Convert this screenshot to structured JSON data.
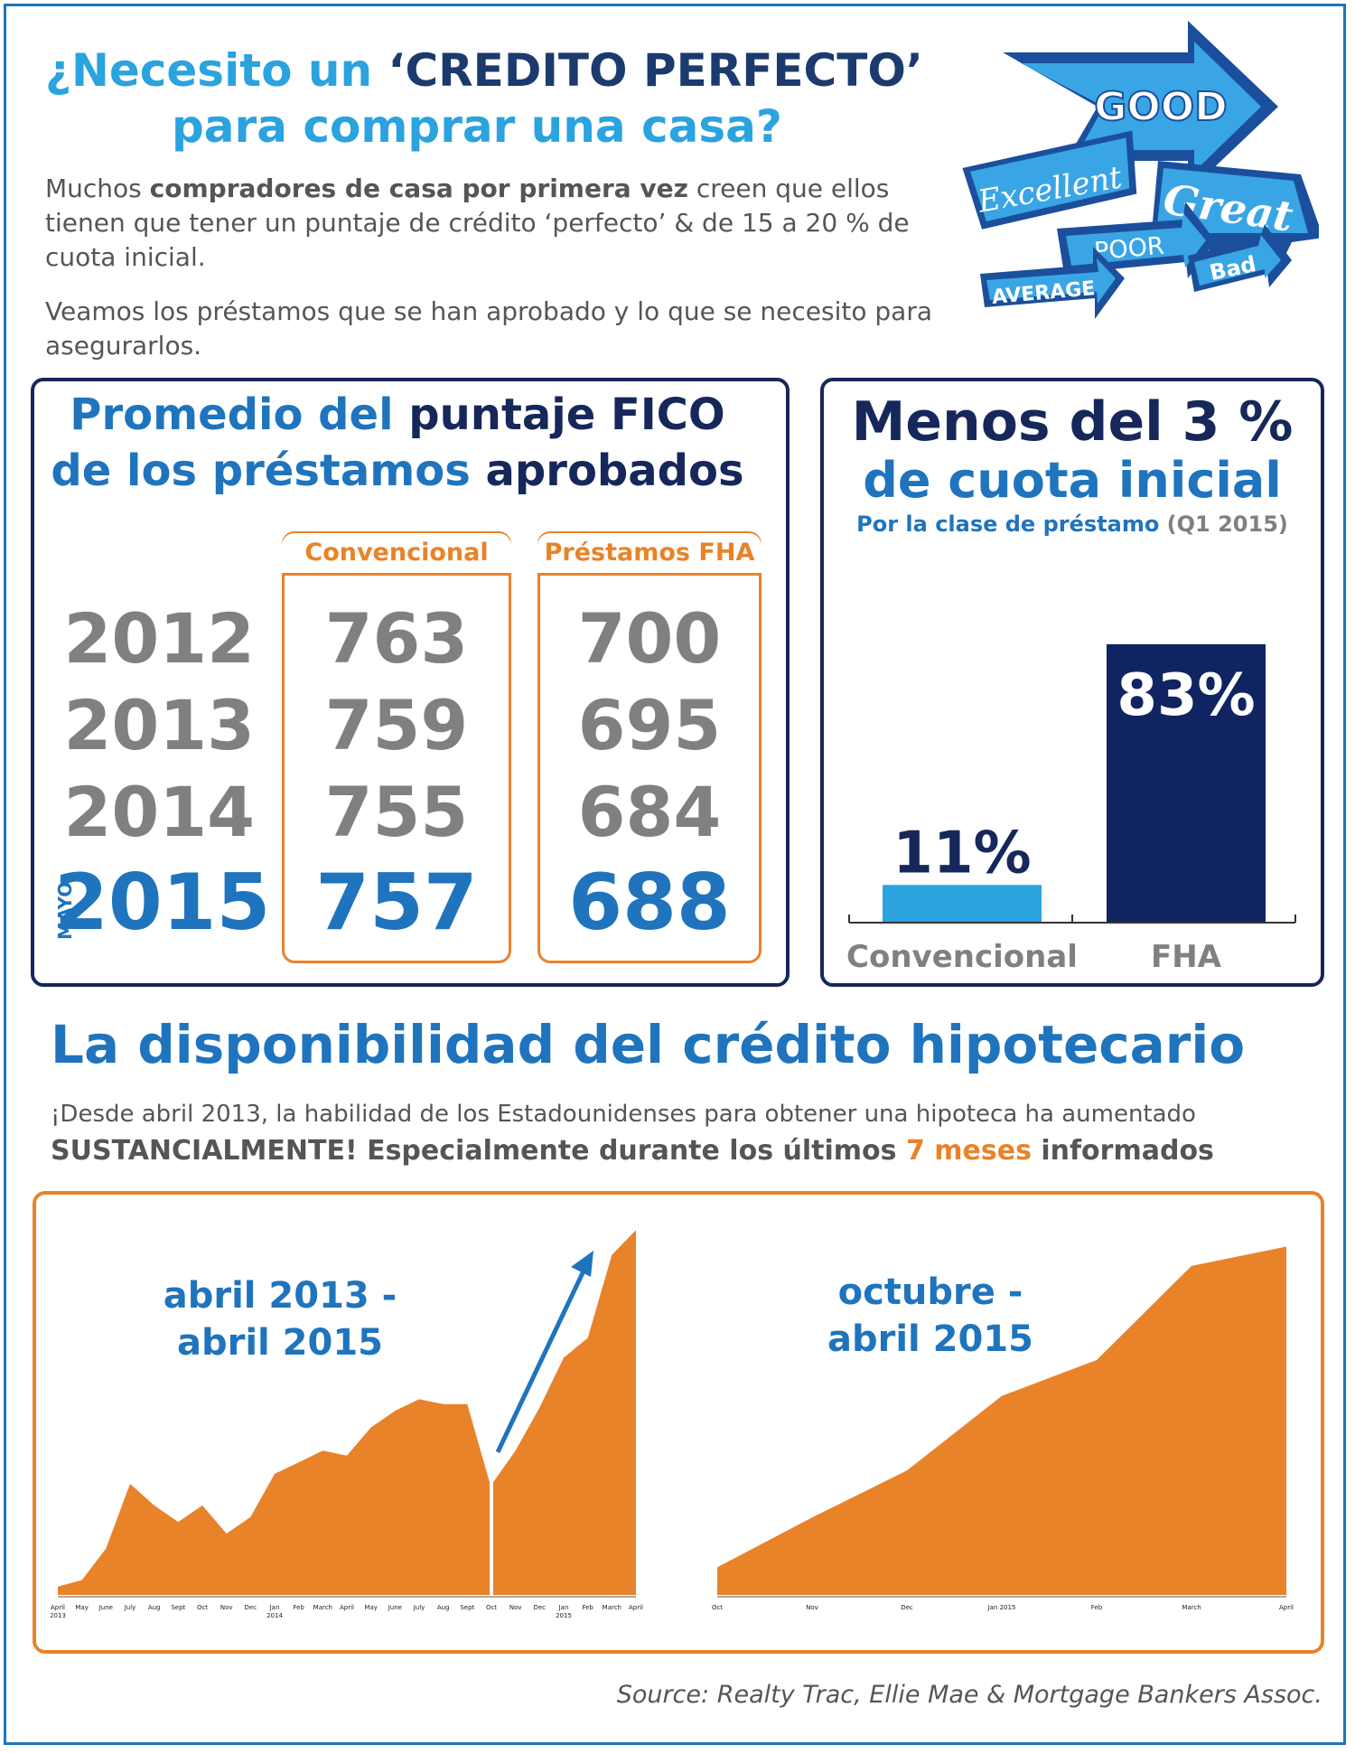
{
  "header": {
    "title_prefix": "¿Necesito un ",
    "title_emph": "‘CREDITO PERFECTO’",
    "title_line2": "para comprar una casa?",
    "intro_p1_a": "Muchos ",
    "intro_p1_b": "compradores de casa por primera vez",
    "intro_p1_c": " creen que ellos tienen que tener un puntaje de crédito ‘perfecto’ & de 15 a 20 % de cuota inicial.",
    "intro_p2": "Veamos los préstamos que se han aprobado y lo que se necesito para asegurarlos."
  },
  "badge": {
    "words": [
      "GOOD",
      "Excellent",
      "Great",
      "POOR",
      "Bad",
      "AVERAGE"
    ],
    "colors": {
      "dark": "#1b4f9c",
      "light": "#3aa5e4"
    }
  },
  "fico": {
    "title_a": "Promedio del ",
    "title_b": "puntaje FICO",
    "title_c": "de los préstamos ",
    "title_d": "aprobados",
    "col_conv": "Convencional",
    "col_fha": "Préstamos FHA",
    "mayo": "MAYO",
    "rows": [
      {
        "year": "2012",
        "conv": "763",
        "fha": "700"
      },
      {
        "year": "2013",
        "conv": "759",
        "fha": "695"
      },
      {
        "year": "2014",
        "conv": "755",
        "fha": "684"
      },
      {
        "year": "2015",
        "conv": "757",
        "fha": "688"
      }
    ]
  },
  "down": {
    "title_a": "Menos del 3 %",
    "title_b": "de cuota inicial",
    "subtitle_a": "Por la clase de préstamo",
    "subtitle_b": " (Q1 2015)"
  },
  "credit": {
    "heading": "La disponibilidad del crédito  hipotecario",
    "sub1": "¡Desde abril 2013, la habilidad de los Estadounidenses para obtener una hipoteca ha aumentado",
    "sub2_a": "SUSTANCIALMENTE! Especialmente durante los últimos ",
    "sub2_b": "7 meses",
    "sub2_c": " informados",
    "label_left_1": "abril 2013 -",
    "label_left_2": "abril 2015",
    "label_right_1": "octubre -",
    "label_right_2": "abril 2015"
  },
  "source": "Source: Realty Trac, Ellie Mae & Mortgage Bankers Assoc.",
  "colors": {
    "blue": "#1f74bd",
    "navy": "#16275a",
    "orange": "#e8832a",
    "light_blue": "#2aa3df",
    "grey": "#808080"
  },
  "chart_data": [
    {
      "type": "bar",
      "title": "",
      "categories": [
        "Convencional",
        "FHA"
      ],
      "values": [
        11,
        83
      ],
      "value_labels": [
        "11%",
        "83%"
      ],
      "unit": "%",
      "ylim": [
        0,
        100
      ],
      "colors": [
        "#2aa3df",
        "#0f2460"
      ]
    },
    {
      "type": "area",
      "title": "",
      "x": [
        "April 2013",
        "May",
        "June",
        "July",
        "Aug",
        "Sept",
        "Oct",
        "Nov",
        "Dec",
        "Jan 2014",
        "Feb",
        "March",
        "April",
        "May",
        "June",
        "July",
        "Aug",
        "Sept",
        "Oct",
        "Nov",
        "Dec",
        "Jan 2015",
        "Feb",
        "March",
        "April"
      ],
      "y": [
        5,
        9,
        28,
        67,
        54,
        44,
        54,
        37,
        47,
        73,
        80,
        87,
        84,
        101,
        111,
        118,
        115,
        115,
        68,
        87,
        113,
        143,
        155,
        205,
        220
      ],
      "ylim": [
        0,
        225
      ],
      "color": "#e8832a"
    },
    {
      "type": "area",
      "title": "",
      "x": [
        "Oct",
        "Nov",
        "Dec",
        "Jan 2015",
        "Feb",
        "March",
        "April"
      ],
      "y": [
        10,
        28,
        45,
        72,
        85,
        119,
        126
      ],
      "ylim": [
        0,
        135
      ],
      "color": "#e8832a"
    }
  ]
}
